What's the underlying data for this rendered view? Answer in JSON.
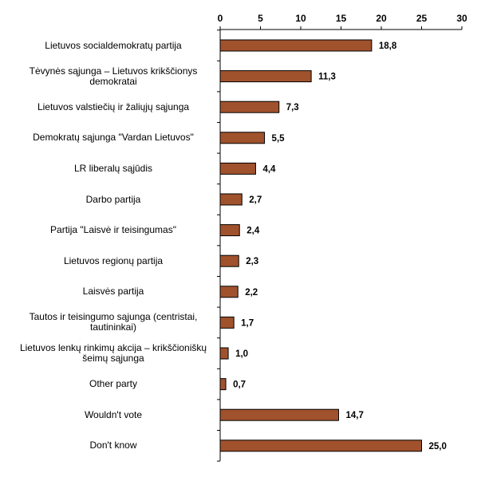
{
  "chart_data": {
    "type": "bar",
    "orientation": "horizontal",
    "categories": [
      "Lietuvos socialdemokratų partija",
      "Tėvynės sąjunga – Lietuvos krikščionys demokratai",
      "Lietuvos valstiečių ir žaliųjų sąjunga",
      "Demokratų sąjunga \"Vardan Lietuvos\"",
      "LR liberalų sąjūdis",
      "Darbo partija",
      "Partija \"Laisvė ir teisingumas\"",
      "Lietuvos regionų partija",
      "Laisvės partija",
      "Tautos ir teisingumo sąjunga (centristai, tautininkai)",
      "Lietuvos lenkų rinkimų akcija – krikščioniškų šeimų sąjunga",
      "Other party",
      "Wouldn't vote",
      "Don't know"
    ],
    "values": [
      18.8,
      11.3,
      7.3,
      5.5,
      4.4,
      2.7,
      2.4,
      2.3,
      2.2,
      1.7,
      1.0,
      0.7,
      14.7,
      25.0
    ],
    "value_labels": [
      "18,8",
      "11,3",
      "7,3",
      "5,5",
      "4,4",
      "2,7",
      "2,4",
      "2,3",
      "2,2",
      "1,7",
      "1,0",
      "0,7",
      "14,7",
      "25,0"
    ],
    "xlim": [
      0,
      30
    ],
    "x_ticks": [
      0,
      5,
      10,
      15,
      20,
      25,
      30
    ],
    "x_axis_position": "top",
    "grid": false,
    "bar_color": "#A0522D",
    "bar_edge_color": "#000000"
  }
}
